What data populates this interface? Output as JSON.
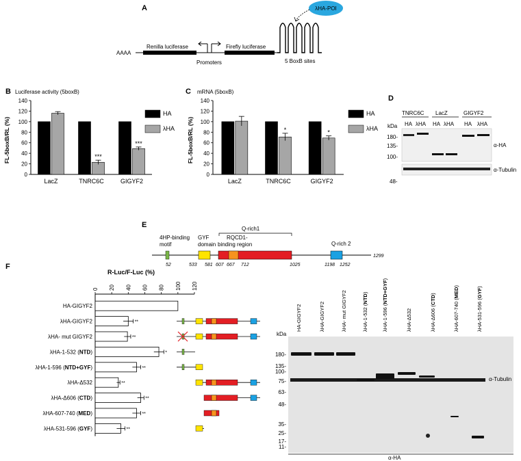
{
  "panels": {
    "A": "A",
    "B": "B",
    "C": "C",
    "D": "D",
    "E": "E",
    "F": "F"
  },
  "panelA": {
    "polyA": "AAAA",
    "renilla": "Renilla luciferase",
    "firefly": "Firefly luciferase",
    "promoters": "Promoters",
    "boxb": "5 BoxB sites",
    "hapoi": "λHA-POI"
  },
  "chart_data": [
    {
      "type": "bar",
      "title": "Luciferase activity (5boxB)",
      "ylabel": "FL-5boxB/RL (%)",
      "ylim": [
        0,
        140
      ],
      "yticks": [
        0,
        20,
        40,
        60,
        80,
        100,
        120,
        140
      ],
      "categories": [
        "LacZ",
        "TNRC6C",
        "GIGYF2"
      ],
      "series": [
        {
          "name": "HA",
          "color": "#000000",
          "values": [
            100,
            100,
            100
          ],
          "errors": [
            0,
            0,
            0
          ],
          "sig": [
            "",
            "",
            ""
          ]
        },
        {
          "name": "λHA",
          "color": "#a6a6a6",
          "values": [
            116,
            23,
            49
          ],
          "errors": [
            3,
            4,
            3
          ],
          "sig": [
            "",
            "***",
            "***"
          ]
        }
      ]
    },
    {
      "type": "bar",
      "title": "mRNA (5boxB)",
      "ylabel": "FL-5boxB/RL (%)",
      "ylim": [
        0,
        140
      ],
      "yticks": [
        0,
        20,
        40,
        60,
        80,
        100,
        120,
        140
      ],
      "categories": [
        "LacZ",
        "TNRC6C",
        "GIGYF2"
      ],
      "series": [
        {
          "name": "HA",
          "color": "#000000",
          "values": [
            100,
            100,
            100
          ],
          "errors": [
            0,
            0,
            0
          ],
          "sig": [
            "",
            "",
            ""
          ]
        },
        {
          "name": "λHA",
          "color": "#a6a6a6",
          "values": [
            101,
            71,
            69
          ],
          "errors": [
            9,
            7,
            4
          ],
          "sig": [
            "",
            "*",
            "*"
          ]
        }
      ]
    },
    {
      "type": "bar",
      "orientation": "horizontal",
      "title": "R-Luc/F-Luc (%)",
      "xlim": [
        0,
        120
      ],
      "xticks": [
        0,
        20,
        40,
        60,
        80,
        100,
        120
      ],
      "categories": [
        "HA-GIGYF2",
        "λHA-GIGYF2",
        "λHA- mut GIGYF2",
        "λHA-1-532 (NTD)",
        "λHA-1-596 (NTD+GYF)",
        "λHA-Δ532",
        "λHA-Δ606 (CTD)",
        "λHA-607-740 (MED)",
        "λHA-531-596 (GYF)"
      ],
      "values": [
        100,
        40,
        39,
        77,
        50,
        28,
        55,
        50,
        31
      ],
      "errors": [
        0,
        6,
        4,
        6,
        5,
        2,
        4,
        5,
        5
      ],
      "sig": [
        "",
        "**",
        "**",
        "*",
        "**",
        "**",
        "**",
        "**",
        "**"
      ]
    }
  ],
  "panelD": {
    "kda": "kDa",
    "groups": [
      "TNRC6C",
      "LacZ",
      "GIGYF2"
    ],
    "lanes": [
      "HA",
      "λHA",
      "HA",
      "λHA",
      "HA",
      "λHA"
    ],
    "markers": [
      "180-",
      "135-",
      "100-",
      "48-"
    ],
    "ha": "α-HA",
    "tubulin": "α-Tubulin"
  },
  "panelE": {
    "motif": "4HP-binding motif",
    "gyf": "GYF domain",
    "qrich1": "Q-rich1",
    "rqcd1": "RQCD1- binding region",
    "qrich2": "Q-rich 2",
    "positions": [
      "52",
      "533",
      "581",
      "607",
      "667",
      "712",
      "1025",
      "1198",
      "1252",
      "1299"
    ]
  },
  "panelF": {
    "kda": "kDa",
    "lanes": [
      "HA-GIGYF2",
      "λHA-GIGYF2",
      "λHA- mut GIGYF2",
      "λHA-1-532 (NTD)",
      "λHA-1-596 (NTD+GYF)",
      "λHA-Δ532",
      "λHA-Δ606 (CTD)",
      "λHA-607-740 (MED)",
      "λHA-531-596 (GYF)"
    ],
    "markers": [
      "180-",
      "135-",
      "100-",
      "75-",
      "63-",
      "48-",
      "35-",
      "25-",
      "17-",
      "11-"
    ],
    "tubulin": "α-Tubulin",
    "ha": "α-HA"
  }
}
